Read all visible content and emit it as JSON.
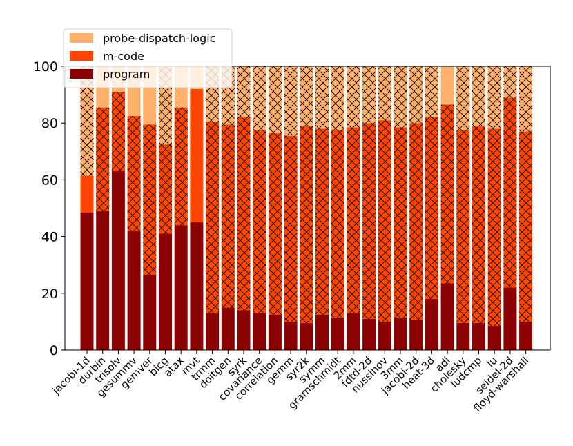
{
  "chart_data": {
    "type": "bar",
    "stacked": true,
    "title": "",
    "xlabel": "",
    "ylabel": "",
    "ylim": [
      0,
      100
    ],
    "yticks": [
      0,
      20,
      40,
      60,
      80,
      100
    ],
    "legend_position": "top-left",
    "categories": [
      "jacobi-1d",
      "durbin",
      "trisolv",
      "gesummv",
      "gemver",
      "bicg",
      "atax",
      "mvt",
      "trmm",
      "doitgen",
      "syrk",
      "covariance",
      "correlation",
      "gemm",
      "syr2k",
      "symm",
      "gramschmidt",
      "2mm",
      "fdtd-2d",
      "nussinov",
      "3mm",
      "jacobi-2d",
      "heat-3d",
      "adi",
      "cholesky",
      "ludcmp",
      "lu",
      "seidel-2d",
      "floyd-warshall"
    ],
    "series": [
      {
        "name": "program",
        "color": "#8b0000",
        "values": [
          48.5,
          49,
          63,
          42,
          26.5,
          41,
          44,
          45,
          13,
          15,
          14,
          13,
          12.5,
          10,
          9.5,
          12.5,
          11.5,
          13,
          11,
          10,
          11.5,
          10.5,
          18,
          23.5,
          9.5,
          9.5,
          8.5,
          22,
          10
        ]
      },
      {
        "name": "m-code",
        "color": "#ff4500",
        "values": [
          13,
          36.5,
          28,
          40.5,
          53,
          31.5,
          41.5,
          47,
          67.5,
          64.5,
          68,
          64.5,
          64,
          65.5,
          69.5,
          65.5,
          66,
          65.5,
          69,
          71,
          67,
          69.5,
          64,
          63,
          68,
          69.5,
          69.5,
          67,
          67
        ]
      },
      {
        "name": "probe-dispatch-logic",
        "color": "#ffb06a",
        "values": [
          38.5,
          14.5,
          9,
          17.5,
          20.5,
          27.5,
          14.5,
          8,
          19.5,
          20.5,
          18,
          22.5,
          23.5,
          24.5,
          21,
          22,
          22.5,
          21.5,
          20,
          19,
          21.5,
          20,
          18,
          13.5,
          22.5,
          21,
          22,
          11,
          23
        ]
      }
    ],
    "hatched": [
      [
        false,
        false,
        false,
        false,
        false,
        false,
        false,
        false,
        false,
        false,
        false,
        false,
        false,
        false,
        false,
        false,
        false,
        false,
        false,
        false,
        false,
        false,
        false,
        false,
        false,
        false,
        false,
        false,
        false
      ],
      [
        false,
        true,
        true,
        true,
        true,
        true,
        true,
        false,
        true,
        true,
        true,
        true,
        true,
        true,
        true,
        true,
        true,
        true,
        true,
        true,
        true,
        true,
        true,
        true,
        true,
        true,
        true,
        true,
        true
      ],
      [
        true,
        false,
        false,
        false,
        false,
        true,
        false,
        false,
        true,
        true,
        true,
        true,
        true,
        true,
        true,
        true,
        true,
        true,
        true,
        true,
        true,
        true,
        true,
        false,
        true,
        true,
        true,
        true,
        true
      ]
    ],
    "hatched_part": [
      [
        0,
        0,
        0,
        0,
        0,
        0,
        0,
        0,
        0,
        0,
        0,
        0,
        0,
        0,
        0,
        0,
        0,
        0,
        0,
        0,
        0,
        0,
        0,
        0,
        0,
        0,
        0,
        0,
        0
      ],
      [
        0,
        0,
        0,
        0,
        0,
        0,
        0,
        0,
        0,
        0,
        0,
        0,
        0,
        0,
        0,
        0,
        0,
        0,
        0,
        0,
        0,
        0,
        0,
        0,
        0,
        0,
        0,
        0,
        0
      ],
      [
        23.5,
        0,
        0,
        0,
        0,
        7.5,
        0,
        0,
        8,
        0,
        0,
        0,
        0,
        0,
        0,
        0,
        0,
        0,
        0,
        0,
        0,
        0,
        0,
        0,
        0,
        0,
        0,
        8,
        0
      ]
    ]
  }
}
